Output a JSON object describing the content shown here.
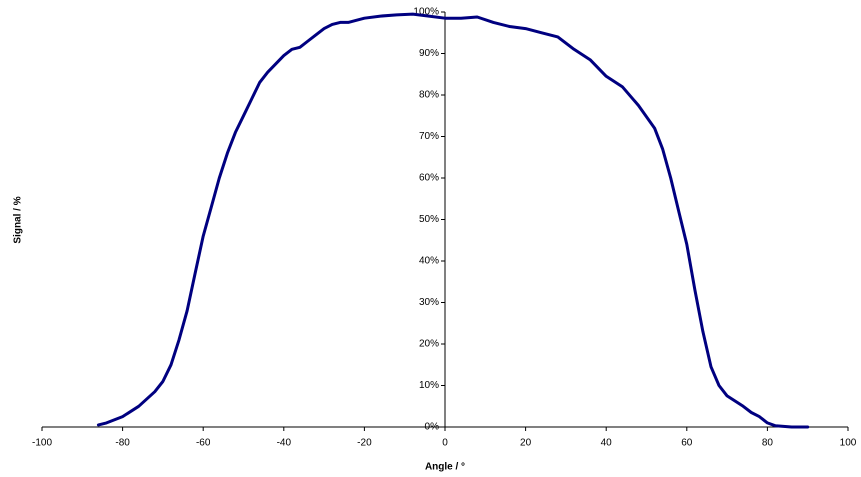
{
  "chart_data": {
    "type": "line",
    "x_label": "Angle / °",
    "y_label": "Signal / %",
    "x": [
      -86,
      -84,
      -80,
      -76,
      -72,
      -70,
      -68,
      -66,
      -64,
      -62,
      -60,
      -58,
      -56,
      -54,
      -52,
      -50,
      -48,
      -46,
      -44,
      -42,
      -40,
      -38,
      -36,
      -34,
      -32,
      -30,
      -28,
      -26,
      -24,
      -22,
      -20,
      -16,
      -12,
      -8,
      -4,
      0,
      4,
      8,
      12,
      16,
      20,
      24,
      28,
      32,
      36,
      40,
      44,
      48,
      52,
      54,
      56,
      58,
      60,
      62,
      64,
      66,
      68,
      70,
      74,
      76,
      78,
      80,
      82,
      86,
      90
    ],
    "series": [
      {
        "name": "Signal",
        "color": "#000080",
        "values": [
          0.5,
          1,
          2.5,
          5,
          8.5,
          11,
          15,
          21,
          28,
          37,
          46,
          53,
          60,
          66,
          71,
          75,
          79,
          83,
          85.5,
          87.5,
          89.5,
          91,
          91.5,
          93,
          94.5,
          96,
          97,
          97.5,
          97.5,
          98,
          98.5,
          99,
          99.3,
          99.5,
          99,
          98.5,
          98.5,
          98.8,
          97.5,
          96.5,
          96,
          95,
          94,
          91,
          88.5,
          84.5,
          82,
          77.5,
          72,
          67,
          60,
          52,
          44,
          33,
          23,
          14.5,
          10,
          7.5,
          5,
          3.5,
          2.5,
          1,
          0.3,
          0,
          0
        ]
      }
    ],
    "xlim": [
      -100,
      100
    ],
    "xticks": [
      -100,
      -80,
      -60,
      -40,
      -20,
      0,
      20,
      40,
      60,
      80,
      100
    ],
    "ylim": [
      0,
      100
    ],
    "yticks": [
      {
        "value": 0,
        "label": "0%"
      },
      {
        "value": 10,
        "label": "10%"
      },
      {
        "value": 20,
        "label": "20%"
      },
      {
        "value": 30,
        "label": "30%"
      },
      {
        "value": 40,
        "label": "40%"
      },
      {
        "value": 50,
        "label": "50%"
      },
      {
        "value": 60,
        "label": "60%"
      },
      {
        "value": 70,
        "label": "70%"
      },
      {
        "value": 80,
        "label": "80%"
      },
      {
        "value": 90,
        "label": "90%"
      },
      {
        "value": 100,
        "label": "100%"
      }
    ],
    "grid": false
  }
}
